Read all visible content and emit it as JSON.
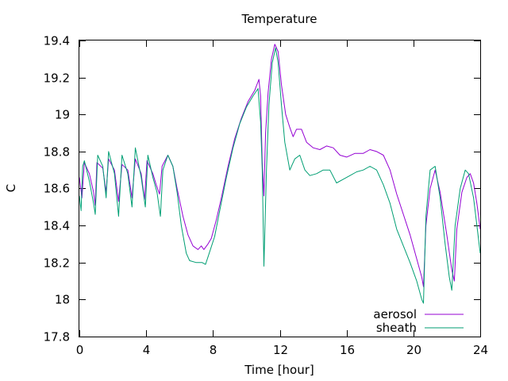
{
  "chart_data": {
    "type": "line",
    "title": "Temperature",
    "xlabel": "Time [hour]",
    "ylabel": "C",
    "xlim": [
      0,
      24
    ],
    "ylim": [
      17.8,
      19.4
    ],
    "xticks": [
      0,
      4,
      8,
      12,
      16,
      20,
      24
    ],
    "yticks": [
      17.8,
      18.0,
      18.2,
      18.4,
      18.6,
      18.8,
      19.0,
      19.2,
      19.4
    ],
    "xtick_labels": [
      "0",
      "4",
      "8",
      "12",
      "16",
      "20",
      "24"
    ],
    "ytick_labels": [
      "17.8",
      "18",
      "18.2",
      "18.4",
      "18.6",
      "18.8",
      "19",
      "19.2",
      "19.4"
    ],
    "grid": false,
    "legend_position": "bottom-right",
    "series": [
      {
        "name": "aerosol",
        "color": "#9400d3",
        "points": [
          [
            0.0,
            18.66
          ],
          [
            0.15,
            18.55
          ],
          [
            0.3,
            18.74
          ],
          [
            0.6,
            18.68
          ],
          [
            0.85,
            18.58
          ],
          [
            0.95,
            18.51
          ],
          [
            1.05,
            18.74
          ],
          [
            1.4,
            18.71
          ],
          [
            1.6,
            18.58
          ],
          [
            1.75,
            18.76
          ],
          [
            2.1,
            18.7
          ],
          [
            2.35,
            18.53
          ],
          [
            2.55,
            18.73
          ],
          [
            2.9,
            18.7
          ],
          [
            3.15,
            18.55
          ],
          [
            3.35,
            18.76
          ],
          [
            3.7,
            18.68
          ],
          [
            3.9,
            18.54
          ],
          [
            4.05,
            18.75
          ],
          [
            4.4,
            18.68
          ],
          [
            4.6,
            18.62
          ],
          [
            4.8,
            18.57
          ],
          [
            4.95,
            18.72
          ],
          [
            5.3,
            18.78
          ],
          [
            5.6,
            18.72
          ],
          [
            5.85,
            18.6
          ],
          [
            6.2,
            18.45
          ],
          [
            6.5,
            18.35
          ],
          [
            6.8,
            18.29
          ],
          [
            7.1,
            18.27
          ],
          [
            7.3,
            18.29
          ],
          [
            7.45,
            18.27
          ],
          [
            7.7,
            18.3
          ],
          [
            7.9,
            18.33
          ],
          [
            8.2,
            18.43
          ],
          [
            8.5,
            18.55
          ],
          [
            8.9,
            18.72
          ],
          [
            9.3,
            18.87
          ],
          [
            9.7,
            18.98
          ],
          [
            10.1,
            19.07
          ],
          [
            10.5,
            19.13
          ],
          [
            10.75,
            19.19
          ],
          [
            10.85,
            19.1
          ],
          [
            10.95,
            18.74
          ],
          [
            11.05,
            18.56
          ],
          [
            11.15,
            18.9
          ],
          [
            11.3,
            19.12
          ],
          [
            11.5,
            19.3
          ],
          [
            11.7,
            19.38
          ],
          [
            11.9,
            19.34
          ],
          [
            12.1,
            19.16
          ],
          [
            12.35,
            19.0
          ],
          [
            12.6,
            18.93
          ],
          [
            12.8,
            18.88
          ],
          [
            13.0,
            18.92
          ],
          [
            13.3,
            18.92
          ],
          [
            13.6,
            18.85
          ],
          [
            14.0,
            18.82
          ],
          [
            14.4,
            18.81
          ],
          [
            14.8,
            18.83
          ],
          [
            15.2,
            18.82
          ],
          [
            15.6,
            18.78
          ],
          [
            16.0,
            18.77
          ],
          [
            16.5,
            18.79
          ],
          [
            17.0,
            18.79
          ],
          [
            17.4,
            18.81
          ],
          [
            17.8,
            18.8
          ],
          [
            18.2,
            18.78
          ],
          [
            18.6,
            18.7
          ],
          [
            19.0,
            18.57
          ],
          [
            19.4,
            18.46
          ],
          [
            19.8,
            18.35
          ],
          [
            20.2,
            18.22
          ],
          [
            20.5,
            18.12
          ],
          [
            20.6,
            18.07
          ],
          [
            20.75,
            18.4
          ],
          [
            21.0,
            18.6
          ],
          [
            21.3,
            18.7
          ],
          [
            21.6,
            18.58
          ],
          [
            22.0,
            18.35
          ],
          [
            22.3,
            18.16
          ],
          [
            22.45,
            18.1
          ],
          [
            22.6,
            18.38
          ],
          [
            22.9,
            18.58
          ],
          [
            23.2,
            18.66
          ],
          [
            23.4,
            18.68
          ],
          [
            23.6,
            18.63
          ],
          [
            23.8,
            18.52
          ],
          [
            24.0,
            18.38
          ]
        ]
      },
      {
        "name": "sheath",
        "color": "#009e73",
        "points": [
          [
            0.0,
            18.56
          ],
          [
            0.1,
            18.48
          ],
          [
            0.2,
            18.72
          ],
          [
            0.3,
            18.75
          ],
          [
            0.6,
            18.64
          ],
          [
            0.85,
            18.52
          ],
          [
            0.95,
            18.46
          ],
          [
            1.1,
            18.78
          ],
          [
            1.4,
            18.72
          ],
          [
            1.6,
            18.55
          ],
          [
            1.75,
            18.8
          ],
          [
            2.1,
            18.68
          ],
          [
            2.35,
            18.45
          ],
          [
            2.55,
            18.78
          ],
          [
            2.9,
            18.68
          ],
          [
            3.15,
            18.5
          ],
          [
            3.35,
            18.82
          ],
          [
            3.7,
            18.66
          ],
          [
            3.95,
            18.5
          ],
          [
            4.1,
            18.78
          ],
          [
            4.4,
            18.66
          ],
          [
            4.65,
            18.58
          ],
          [
            4.85,
            18.45
          ],
          [
            5.0,
            18.7
          ],
          [
            5.3,
            18.78
          ],
          [
            5.6,
            18.72
          ],
          [
            5.85,
            18.58
          ],
          [
            6.1,
            18.4
          ],
          [
            6.4,
            18.25
          ],
          [
            6.6,
            18.21
          ],
          [
            7.0,
            18.2
          ],
          [
            7.35,
            18.2
          ],
          [
            7.55,
            18.19
          ],
          [
            7.7,
            18.23
          ],
          [
            8.1,
            18.34
          ],
          [
            8.4,
            18.48
          ],
          [
            8.8,
            18.66
          ],
          [
            9.2,
            18.82
          ],
          [
            9.6,
            18.95
          ],
          [
            10.0,
            19.04
          ],
          [
            10.4,
            19.1
          ],
          [
            10.7,
            19.14
          ],
          [
            10.85,
            18.96
          ],
          [
            10.95,
            18.7
          ],
          [
            11.05,
            18.18
          ],
          [
            11.2,
            18.7
          ],
          [
            11.35,
            19.05
          ],
          [
            11.55,
            19.28
          ],
          [
            11.75,
            19.36
          ],
          [
            11.9,
            19.28
          ],
          [
            12.1,
            19.05
          ],
          [
            12.3,
            18.85
          ],
          [
            12.6,
            18.7
          ],
          [
            12.9,
            18.76
          ],
          [
            13.2,
            18.78
          ],
          [
            13.5,
            18.7
          ],
          [
            13.8,
            18.67
          ],
          [
            14.2,
            18.68
          ],
          [
            14.6,
            18.7
          ],
          [
            15.0,
            18.7
          ],
          [
            15.4,
            18.63
          ],
          [
            15.8,
            18.65
          ],
          [
            16.2,
            18.67
          ],
          [
            16.6,
            18.69
          ],
          [
            17.0,
            18.7
          ],
          [
            17.4,
            18.72
          ],
          [
            17.8,
            18.7
          ],
          [
            18.2,
            18.62
          ],
          [
            18.6,
            18.52
          ],
          [
            19.0,
            18.38
          ],
          [
            19.4,
            18.29
          ],
          [
            19.8,
            18.2
          ],
          [
            20.2,
            18.1
          ],
          [
            20.5,
            18.0
          ],
          [
            20.6,
            17.98
          ],
          [
            20.75,
            18.45
          ],
          [
            21.0,
            18.7
          ],
          [
            21.3,
            18.72
          ],
          [
            21.6,
            18.55
          ],
          [
            21.9,
            18.3
          ],
          [
            22.15,
            18.12
          ],
          [
            22.3,
            18.05
          ],
          [
            22.5,
            18.4
          ],
          [
            22.8,
            18.6
          ],
          [
            23.1,
            18.7
          ],
          [
            23.3,
            18.68
          ],
          [
            23.6,
            18.55
          ],
          [
            23.8,
            18.4
          ],
          [
            24.0,
            18.25
          ]
        ]
      }
    ]
  }
}
